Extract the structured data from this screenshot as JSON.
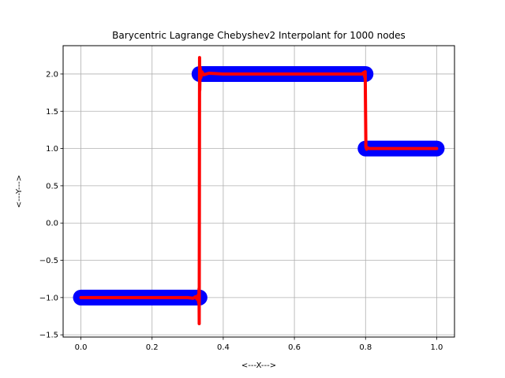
{
  "chart_data": {
    "type": "line",
    "title": "Barycentric Lagrange Chebyshev2 Interpolant for 1000 nodes",
    "xlabel": "<---X--->",
    "ylabel": "<---Y--->",
    "xlim": [
      -0.05,
      1.05
    ],
    "ylim": [
      -1.53,
      2.38
    ],
    "xticks": [
      0.0,
      0.2,
      0.4,
      0.6,
      0.8,
      1.0
    ],
    "xtick_labels": [
      "0.0",
      "0.2",
      "0.4",
      "0.6",
      "0.8",
      "1.0"
    ],
    "yticks": [
      -1.5,
      -1.0,
      -0.5,
      0.0,
      0.5,
      1.0,
      1.5,
      2.0
    ],
    "ytick_labels": [
      "−1.5",
      "−1.0",
      "−0.5",
      "0.0",
      "0.5",
      "1.0",
      "1.5",
      "2.0"
    ],
    "grid": true,
    "series": [
      {
        "color": "#0000ff",
        "style": "markers",
        "segments": [
          {
            "x": [
              0.0,
              0.3333
            ],
            "y": [
              -1.0,
              -1.0
            ]
          },
          {
            "x": [
              0.3333,
              0.8
            ],
            "y": [
              2.0,
              2.0
            ]
          },
          {
            "x": [
              0.8,
              1.0
            ],
            "y": [
              1.0,
              1.0
            ]
          }
        ]
      },
      {
        "color": "#ff0000",
        "style": "line",
        "points": [
          [
            0.0,
            -1.0
          ],
          [
            0.3,
            -1.0
          ],
          [
            0.315,
            -1.01
          ],
          [
            0.322,
            -0.99
          ],
          [
            0.326,
            -1.02
          ],
          [
            0.329,
            -0.97
          ],
          [
            0.331,
            -1.07
          ],
          [
            0.332,
            -0.88
          ],
          [
            0.3325,
            -1.35
          ],
          [
            0.3335,
            2.22
          ],
          [
            0.334,
            1.78
          ],
          [
            0.335,
            2.09
          ],
          [
            0.337,
            1.95
          ],
          [
            0.34,
            2.03
          ],
          [
            0.345,
            1.99
          ],
          [
            0.36,
            2.01
          ],
          [
            0.4,
            2.0
          ],
          [
            0.79,
            2.0
          ],
          [
            0.795,
            2.02
          ],
          [
            0.798,
            1.96
          ],
          [
            0.799,
            2.03
          ],
          [
            0.8,
            1.5
          ],
          [
            0.801,
            1.02
          ],
          [
            0.803,
            0.99
          ],
          [
            0.806,
            1.01
          ],
          [
            0.81,
            1.0
          ],
          [
            1.0,
            1.0
          ]
        ]
      }
    ]
  }
}
